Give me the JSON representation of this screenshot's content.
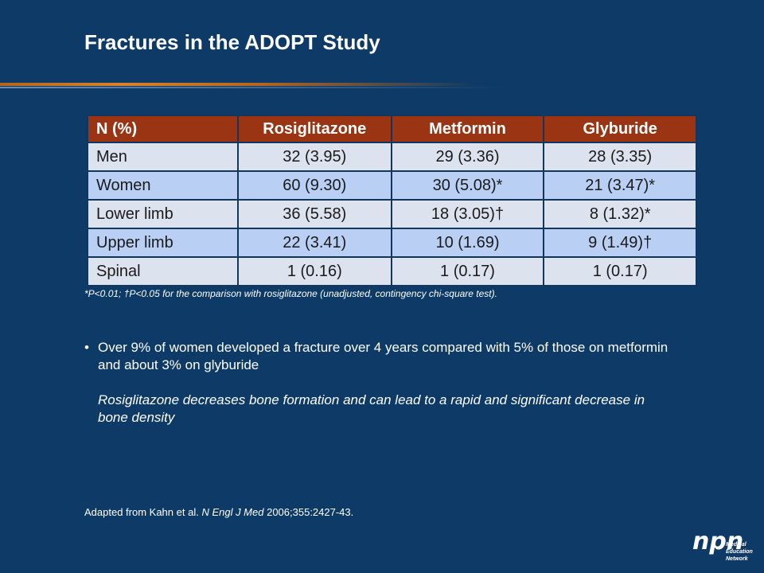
{
  "slide": {
    "title": "Fractures in the ADOPT Study"
  },
  "table": {
    "headers": [
      "N (%)",
      "Rosiglitazone",
      "Metformin",
      "Glyburide"
    ],
    "rows": [
      [
        "Men",
        "32 (3.95)",
        "29 (3.36)",
        "28 (3.35)"
      ],
      [
        "Women",
        "60 (9.30)",
        "30 (5.08)*",
        "21 (3.47)*"
      ],
      [
        "Lower limb",
        "36 (5.58)",
        "18 (3.05)†",
        "8 (1.32)*"
      ],
      [
        "Upper limb",
        "22 (3.41)",
        "10 (1.69)",
        "9 (1.49)†"
      ],
      [
        "Spinal",
        "1 (0.16)",
        "1 (0.17)",
        "1 (0.17)"
      ]
    ],
    "colors": {
      "header_bg": "#9a3413",
      "row_light": "#dde3ee",
      "row_blue": "#b9cff3"
    }
  },
  "footnote": "*P<0.01; †P<0.05 for the comparison with rosiglitazone (unadjusted, contingency chi-square test).",
  "bullets": {
    "marker": "•",
    "main": "Over 9% of women developed a fracture over 4 years compared with 5% of those on metformin and about 3% on glyburide",
    "sub": "Rosiglitazone decreases bone formation and can lead to a rapid and significant decrease in bone density"
  },
  "source": {
    "prefix": "Adapted from Kahn et al. ",
    "journal": "N Engl J Med",
    "suffix": " 2006;355:2427-43."
  },
  "logo": {
    "mark": "npn",
    "lines": [
      "Medical",
      "Education",
      "Network"
    ]
  },
  "colors": {
    "background": "#0d3a66",
    "accent": "#b5651d"
  }
}
